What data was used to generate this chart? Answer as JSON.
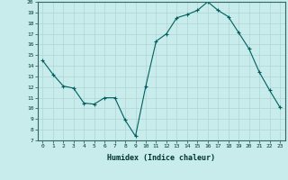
{
  "x": [
    0,
    1,
    2,
    3,
    4,
    5,
    6,
    7,
    8,
    9,
    10,
    11,
    12,
    13,
    14,
    15,
    16,
    17,
    18,
    19,
    20,
    21,
    22,
    23
  ],
  "y": [
    14.5,
    13.2,
    12.1,
    11.9,
    10.5,
    10.4,
    11.0,
    11.0,
    8.9,
    7.4,
    12.1,
    16.3,
    17.0,
    18.5,
    18.8,
    19.2,
    20.0,
    19.2,
    18.6,
    17.1,
    15.6,
    13.4,
    11.7,
    10.1
  ],
  "line_color": "#006060",
  "marker": "+",
  "marker_size": 3,
  "bg_color": "#c8ebeb",
  "grid_color": "#b0d4d4",
  "xlabel": "Humidex (Indice chaleur)",
  "ylabel": "",
  "title": "",
  "xlim": [
    -0.5,
    23.5
  ],
  "ylim": [
    7,
    20
  ],
  "xticks": [
    0,
    1,
    2,
    3,
    4,
    5,
    6,
    7,
    8,
    9,
    10,
    11,
    12,
    13,
    14,
    15,
    16,
    17,
    18,
    19,
    20,
    21,
    22,
    23
  ],
  "yticks": [
    7,
    8,
    9,
    10,
    11,
    12,
    13,
    14,
    15,
    16,
    17,
    18,
    19,
    20
  ]
}
